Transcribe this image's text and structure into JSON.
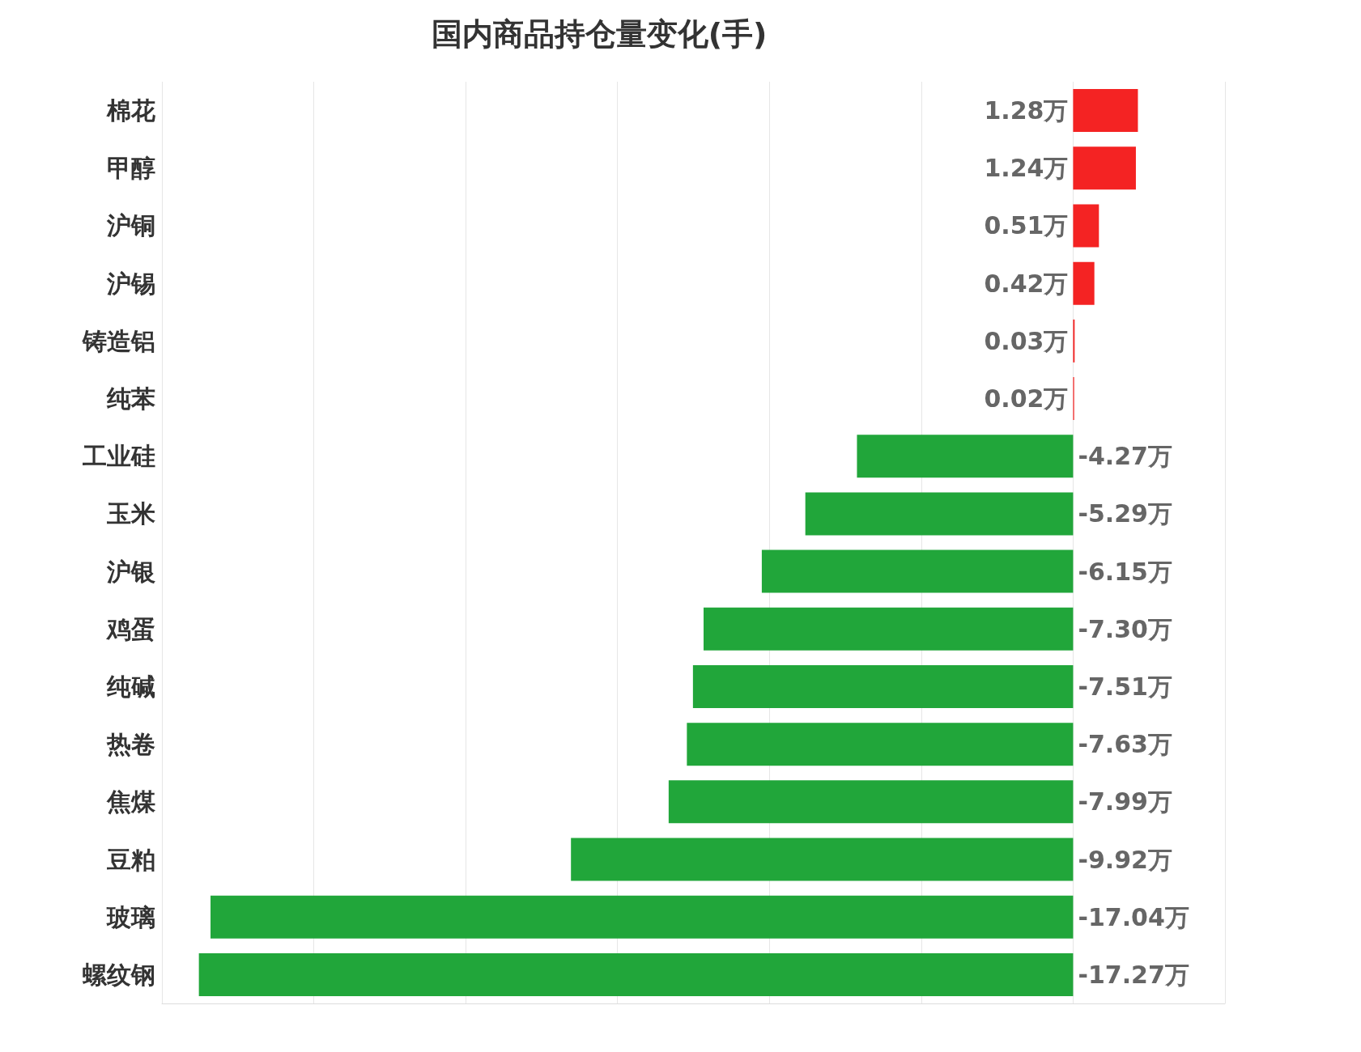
{
  "chart_data": {
    "type": "bar",
    "orientation": "horizontal",
    "title": "国内商品持仓量变化(手)",
    "categories": [
      "棉花",
      "甲醇",
      "沪铜",
      "沪锡",
      "铸造铝",
      "纯苯",
      "工业硅",
      "玉米",
      "沪银",
      "鸡蛋",
      "纯碱",
      "热卷",
      "焦煤",
      "豆粕",
      "玻璃",
      "螺纹钢"
    ],
    "values": [
      1.28,
      1.24,
      0.51,
      0.42,
      0.03,
      0.02,
      -4.27,
      -5.29,
      -6.15,
      -7.3,
      -7.51,
      -7.63,
      -7.99,
      -9.92,
      -17.04,
      -17.27
    ],
    "value_labels": [
      "1.28万",
      "1.24万",
      "0.51万",
      "0.42万",
      "0.03万",
      "0.02万",
      "-4.27万",
      "-5.29万",
      "-6.15万",
      "-7.30万",
      "-7.51万",
      "-7.63万",
      "-7.99万",
      "-9.92万",
      "-17.04万",
      "-17.27万"
    ],
    "colors": [
      "#f42323",
      "#f42323",
      "#f42323",
      "#f42323",
      "#f42323",
      "#f42323",
      "#21a63a",
      "#21a63a",
      "#21a63a",
      "#21a63a",
      "#21a63a",
      "#21a63a",
      "#21a63a",
      "#21a63a",
      "#21a63a",
      "#21a63a"
    ],
    "xlim": [
      -18,
      3
    ],
    "xticks": [
      {
        "value": -18,
        "label": null
      },
      {
        "value": -15,
        "label": null
      },
      {
        "value": -12,
        "label": null
      },
      {
        "value": -9,
        "label": null
      },
      {
        "value": -6,
        "label": null
      },
      {
        "value": -3,
        "label": null
      },
      {
        "value": 0,
        "label": null
      },
      {
        "value": 3,
        "label": null
      }
    ],
    "tick_labels": "y",
    "grid": "x"
  }
}
